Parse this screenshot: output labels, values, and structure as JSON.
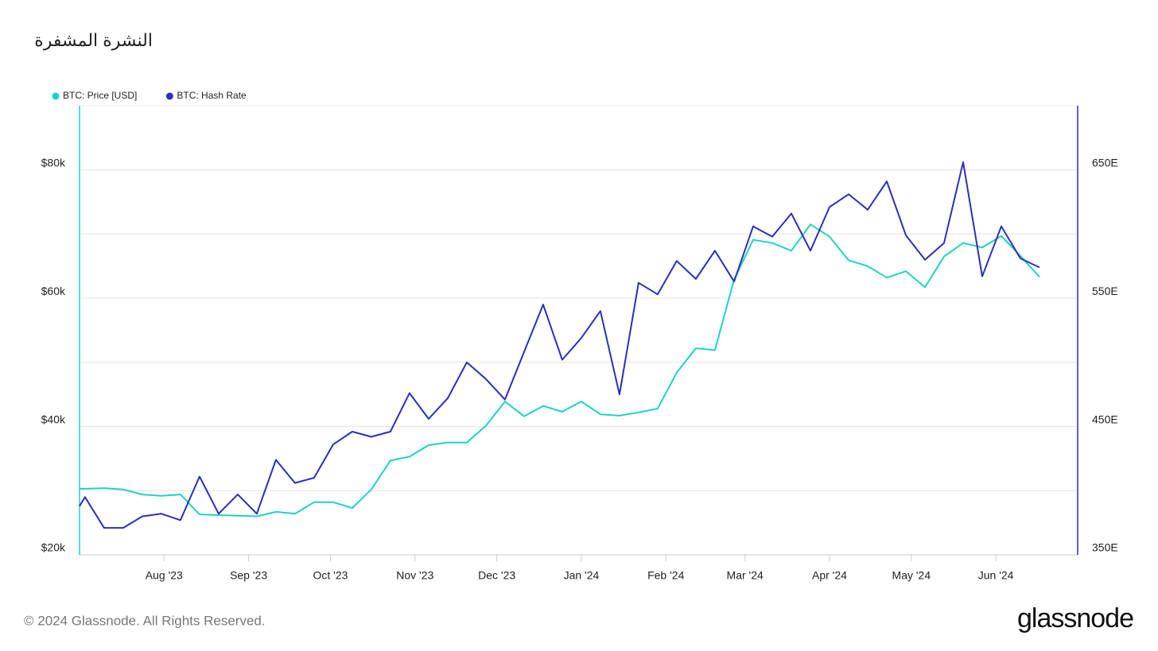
{
  "chart_data": {
    "type": "line",
    "title": "النشرة المشفرة",
    "x": [
      "2023-07-01",
      "2023-07-03",
      "2023-07-10",
      "2023-07-17",
      "2023-07-24",
      "2023-07-31",
      "2023-08-07",
      "2023-08-14",
      "2023-08-21",
      "2023-08-28",
      "2023-09-04",
      "2023-09-11",
      "2023-09-18",
      "2023-09-25",
      "2023-10-02",
      "2023-10-09",
      "2023-10-16",
      "2023-10-23",
      "2023-10-30",
      "2023-11-06",
      "2023-11-13",
      "2023-11-20",
      "2023-11-27",
      "2023-12-04",
      "2023-12-11",
      "2023-12-18",
      "2023-12-25",
      "2024-01-01",
      "2024-01-08",
      "2024-01-15",
      "2024-01-22",
      "2024-01-29",
      "2024-02-05",
      "2024-02-12",
      "2024-02-19",
      "2024-02-26",
      "2024-03-04",
      "2024-03-11",
      "2024-03-18",
      "2024-03-25",
      "2024-04-01",
      "2024-04-08",
      "2024-04-15",
      "2024-04-22",
      "2024-04-29",
      "2024-05-06",
      "2024-05-13",
      "2024-05-20",
      "2024-05-27",
      "2024-06-03",
      "2024-06-10",
      "2024-06-17"
    ],
    "series": [
      {
        "name": "BTC: Price [USD]",
        "color": "#1fd3c1",
        "values": [
          30300,
          30300,
          30400,
          30200,
          29400,
          29200,
          29400,
          26300,
          26200,
          26100,
          26000,
          26700,
          26400,
          28200,
          28200,
          27300,
          30200,
          34700,
          35300,
          37100,
          37500,
          37500,
          40100,
          43900,
          41600,
          43200,
          42300,
          43900,
          41900,
          41700,
          42200,
          42800,
          48400,
          52200,
          51900,
          62900,
          69100,
          68600,
          67400,
          71500,
          69600,
          65900,
          65000,
          63200,
          64200,
          61700,
          66500,
          68600,
          67900,
          69700,
          66600,
          63300
        ]
      },
      {
        "name": "BTC: Hash Rate",
        "color": "#2b2fb8",
        "axis": "y2",
        "values": [
          388,
          395,
          371,
          371,
          380,
          382,
          377,
          411,
          382,
          397,
          382,
          424,
          406,
          410,
          436,
          446,
          442,
          446,
          476,
          456,
          472,
          500,
          487,
          471,
          508,
          545,
          502,
          519,
          540,
          475,
          562,
          553,
          579,
          565,
          587,
          563,
          606,
          598,
          616,
          587,
          621,
          631,
          619,
          641,
          599,
          580,
          593,
          656,
          567,
          606,
          581,
          574
        ]
      }
    ],
    "xlim": [
      "2023-07-01",
      "2024-07-01"
    ],
    "xticks": [
      {
        "value": "2023-08-01",
        "label": "Aug '23"
      },
      {
        "value": "2023-09-01",
        "label": "Sep '23"
      },
      {
        "value": "2023-10-01",
        "label": "Oct '23"
      },
      {
        "value": "2023-11-01",
        "label": "Nov '23"
      },
      {
        "value": "2023-12-01",
        "label": "Dec '23"
      },
      {
        "value": "2024-01-01",
        "label": "Jan '24"
      },
      {
        "value": "2024-02-01",
        "label": "Feb '24"
      },
      {
        "value": "2024-03-01",
        "label": "Mar '24"
      },
      {
        "value": "2024-04-01",
        "label": "Apr '24"
      },
      {
        "value": "2024-05-01",
        "label": "May '24"
      },
      {
        "value": "2024-06-01",
        "label": "Jun '24"
      }
    ],
    "ylim": [
      20000,
      90000
    ],
    "yticks": [
      {
        "value": 20000,
        "label": "$20k"
      },
      {
        "value": 40000,
        "label": "$40k"
      },
      {
        "value": 60000,
        "label": "$60k"
      },
      {
        "value": 80000,
        "label": "$80k"
      }
    ],
    "minor_yticks": [
      30000,
      50000,
      70000
    ],
    "y2lim": [
      350,
      700
    ],
    "y2ticks": [
      {
        "value": 350,
        "label": "350E"
      },
      {
        "value": 450,
        "label": "450E"
      },
      {
        "value": 550,
        "label": "550E"
      },
      {
        "value": 650,
        "label": "650E"
      }
    ],
    "grid": true,
    "legend": "top-left"
  },
  "footer": {
    "copyright": "© 2024 Glassnode. All Rights Reserved.",
    "brand": "glassnode"
  }
}
